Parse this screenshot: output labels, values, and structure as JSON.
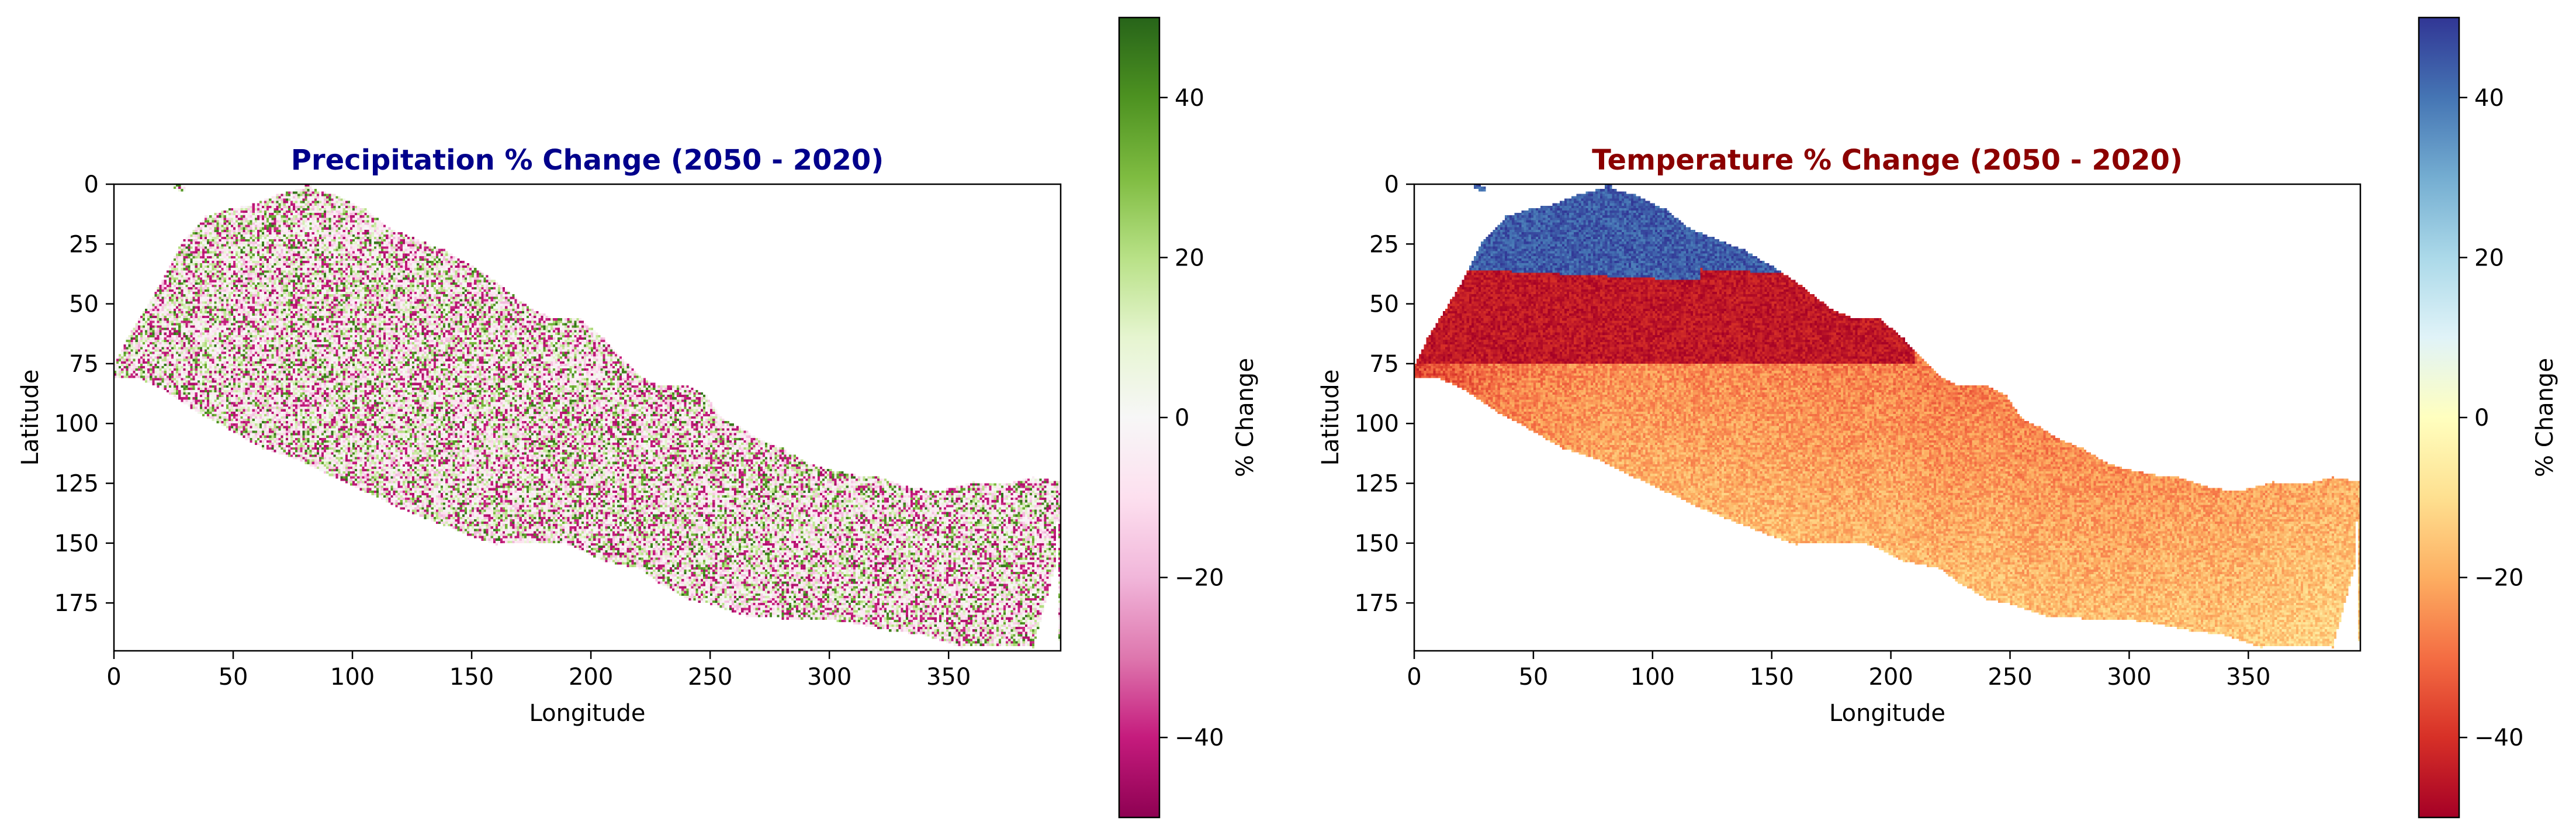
{
  "chart_data": [
    {
      "type": "heatmap",
      "title": "Precipitation % Change (2050 - 2020)",
      "title_color": "#00008b",
      "xlabel": "Longitude",
      "ylabel": "Latitude",
      "xlim": [
        0,
        397
      ],
      "ylim": [
        195,
        0
      ],
      "x_ticks": [
        0,
        50,
        100,
        150,
        200,
        250,
        300,
        350
      ],
      "y_ticks": [
        0,
        25,
        50,
        75,
        100,
        125,
        150,
        175
      ],
      "grid": false,
      "colormap": "PiYG",
      "value_pattern": "random noise",
      "colorbar": {
        "label": "% Change",
        "range": [
          -50,
          50
        ],
        "ticks": [
          40,
          20,
          0,
          -20,
          -40
        ],
        "tick_labels": [
          "40",
          "20",
          "0",
          "−20",
          "−40"
        ]
      }
    },
    {
      "type": "heatmap",
      "title": "Temperature % Change (2050 - 2020)",
      "title_color": "#8b0000",
      "xlabel": "Longitude",
      "ylabel": "Latitude",
      "xlim": [
        0,
        397
      ],
      "ylim": [
        195,
        0
      ],
      "x_ticks": [
        0,
        50,
        100,
        150,
        200,
        250,
        300,
        350
      ],
      "y_ticks": [
        0,
        25,
        50,
        75,
        100,
        125,
        150,
        175
      ],
      "grid": false,
      "colormap": "RdYlBu",
      "value_pattern": "north high (+45), band near -45 at rows 30-75, rising to about -15 in the southeast",
      "colorbar": {
        "label": "% Change",
        "range": [
          -50,
          50
        ],
        "ticks": [
          40,
          20,
          0,
          -20,
          -40
        ],
        "tick_labels": [
          "40",
          "20",
          "0",
          "−20",
          "−40"
        ]
      }
    }
  ],
  "map_mask": {
    "description": "outline of the data region (Nepal) in data units",
    "top": [
      [
        0,
        75
      ],
      [
        5,
        64
      ],
      [
        15,
        48
      ],
      [
        22,
        36
      ],
      [
        28,
        24
      ],
      [
        38,
        13
      ],
      [
        48,
        10
      ],
      [
        58,
        8
      ],
      [
        68,
        4
      ],
      [
        80,
        1
      ],
      [
        92,
        4
      ],
      [
        105,
        10
      ],
      [
        115,
        18
      ],
      [
        125,
        22
      ],
      [
        138,
        27
      ],
      [
        150,
        34
      ],
      [
        162,
        42
      ],
      [
        175,
        52
      ],
      [
        185,
        56
      ],
      [
        195,
        56
      ],
      [
        205,
        64
      ],
      [
        212,
        72
      ],
      [
        220,
        80
      ],
      [
        228,
        84
      ],
      [
        240,
        84
      ],
      [
        248,
        88
      ],
      [
        255,
        98
      ],
      [
        262,
        101
      ],
      [
        270,
        106
      ],
      [
        280,
        110
      ],
      [
        290,
        116
      ],
      [
        300,
        119
      ],
      [
        310,
        121
      ],
      [
        320,
        122
      ],
      [
        332,
        126
      ],
      [
        345,
        128
      ],
      [
        360,
        124
      ],
      [
        372,
        125
      ],
      [
        385,
        122
      ],
      [
        397,
        124
      ]
    ],
    "bottom": [
      [
        397,
        124
      ],
      [
        395,
        140
      ],
      [
        394,
        160
      ],
      [
        395,
        176
      ],
      [
        396,
        190
      ],
      [
        385,
        193
      ],
      [
        370,
        192
      ],
      [
        355,
        193
      ],
      [
        340,
        188
      ],
      [
        325,
        186
      ],
      [
        310,
        183
      ],
      [
        295,
        181
      ],
      [
        280,
        181
      ],
      [
        265,
        180
      ],
      [
        250,
        175
      ],
      [
        240,
        173
      ],
      [
        228,
        166
      ],
      [
        220,
        160
      ],
      [
        205,
        157
      ],
      [
        190,
        150
      ],
      [
        175,
        149
      ],
      [
        160,
        150
      ],
      [
        148,
        146
      ],
      [
        135,
        141
      ],
      [
        120,
        135
      ],
      [
        105,
        128
      ],
      [
        92,
        122
      ],
      [
        78,
        115
      ],
      [
        62,
        110
      ],
      [
        48,
        102
      ],
      [
        35,
        95
      ],
      [
        20,
        85
      ],
      [
        8,
        80
      ],
      [
        0,
        80
      ]
    ]
  },
  "pads": [
    [
      25,
      0,
      1
    ],
    [
      27,
      1,
      2
    ],
    [
      80,
      0,
      1
    ]
  ]
}
